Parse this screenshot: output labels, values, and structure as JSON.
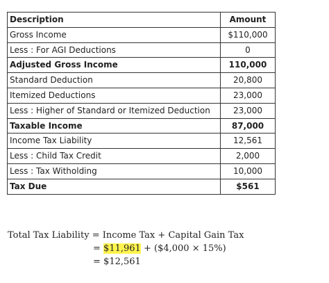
{
  "table": {
    "headers": {
      "description": "Description",
      "amount": "Amount"
    },
    "rows": [
      {
        "description": "Gross Income",
        "amount": "$110,000",
        "bold": false
      },
      {
        "description": "Less : For AGI Deductions",
        "amount": "0",
        "bold": false
      },
      {
        "description": "Adjusted Gross Income",
        "amount": "110,000",
        "bold": true
      },
      {
        "description": "Standard Deduction",
        "amount": "20,800",
        "bold": false
      },
      {
        "description": "Itemized Deductions",
        "amount": "23,000",
        "bold": false
      },
      {
        "description": "Less : Higher of Standard or Itemized Deduction",
        "amount": "23,000",
        "bold": false
      },
      {
        "description": "Taxable Income",
        "amount": "87,000",
        "bold": true
      },
      {
        "description": "Income Tax Liability",
        "amount": "12,561",
        "bold": false
      },
      {
        "description": "Less : Child Tax Credit",
        "amount": "2,000",
        "bold": false
      },
      {
        "description": "Less : Tax Witholding",
        "amount": "10,000",
        "bold": false
      },
      {
        "description": "Tax Due",
        "amount": "$561",
        "bold": true
      }
    ]
  },
  "formula": {
    "line1_lhs": "Total Tax Liability",
    "eq": "=",
    "line1_rhs_a": "Income Tax",
    "plus": "+",
    "line1_rhs_b": "Capital Gain Tax",
    "line2_highlight": "$11,961",
    "line2_rest": "($4,000 × 15%)",
    "line3_value": "$12,561"
  },
  "colors": {
    "highlight": "#fff44f",
    "border": "#333333"
  }
}
